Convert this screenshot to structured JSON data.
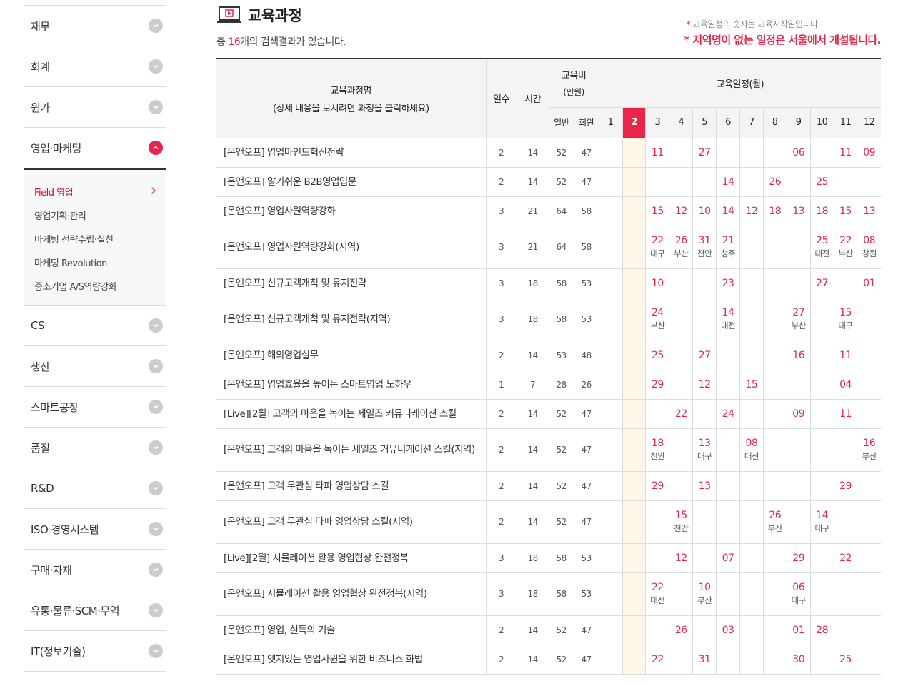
{
  "sidebar": {
    "items_before": [
      "재무",
      "회계",
      "원가"
    ],
    "open_item": "영업·마케팅",
    "submenu": [
      {
        "label": "Field 영업",
        "active": true
      },
      {
        "label": "영업기획·관리"
      },
      {
        "label": "마케팅 전략수립·실천"
      },
      {
        "label": "마케팅 Revolution"
      },
      {
        "label": "중소기업 A/S역량강화"
      }
    ],
    "items_after": [
      "CS",
      "생산",
      "스마트공장",
      "품질",
      "R&D",
      "ISO 경영시스템",
      "구매·자재",
      "유통·물류·SCM·무역",
      "IT(정보기술)"
    ]
  },
  "header": {
    "title": "교육과정",
    "icon": "laptop-play-icon",
    "count_prefix": "총 ",
    "count": "16",
    "count_suffix": "개의 검색결과가 있습니다.",
    "note1": "교육일정의 숫자는 교육시작일입니다.",
    "note2": "* 지역명이 없는 일정은 서울에서 개설됩니다.",
    "note_mark": "*"
  },
  "colors": {
    "accent": "#e8264a",
    "current_month_bg": "#fff8e8"
  },
  "table": {
    "col_name": "교육과정명",
    "col_name_sub": "(상세 내용을 보시려면 과정을 클릭하세요)",
    "col_days": "일수",
    "col_hours": "시간",
    "col_fee": "교육비",
    "col_fee_unit": "(만원)",
    "col_fee_general": "일반",
    "col_fee_member": "회원",
    "col_schedule": "교육일정(월)",
    "months": [
      "1",
      "2",
      "3",
      "4",
      "5",
      "6",
      "7",
      "8",
      "9",
      "10",
      "11",
      "12"
    ],
    "current_month": "2",
    "rows": [
      {
        "name": "[온앤오프] 영업마인드혁신전략",
        "days": "2",
        "hours": "14",
        "general": "52",
        "member": "47",
        "schedule": [
          "",
          "",
          "11",
          "",
          "27",
          "",
          "",
          "",
          "06",
          "",
          "11",
          "09"
        ]
      },
      {
        "name": "[온앤오프] 알기쉬운 B2B영업입문",
        "days": "2",
        "hours": "14",
        "general": "52",
        "member": "47",
        "schedule": [
          "",
          "",
          "",
          "",
          "",
          "14",
          "",
          "26",
          "",
          "25",
          "",
          ""
        ]
      },
      {
        "name": "[온앤오프] 영업사원역량강화",
        "days": "3",
        "hours": "21",
        "general": "64",
        "member": "58",
        "schedule": [
          "",
          "",
          "15",
          "12",
          "10",
          "14",
          "12",
          "18",
          "13",
          "18",
          "15",
          "13"
        ]
      },
      {
        "name": "[온앤오프] 영업사원역량강화(지역)",
        "days": "3",
        "hours": "21",
        "general": "64",
        "member": "58",
        "schedule": [
          "",
          "",
          "22",
          "26",
          "31",
          "21",
          "",
          "",
          "",
          "25",
          "22",
          "08"
        ],
        "regions": [
          "",
          "",
          "대구",
          "부산",
          "천안",
          "청주",
          "",
          "",
          "",
          "대전",
          "부산",
          "창원"
        ]
      },
      {
        "name": "[온앤오프] 신규고객개척 및 유지전략",
        "days": "3",
        "hours": "18",
        "general": "58",
        "member": "53",
        "schedule": [
          "",
          "",
          "10",
          "",
          "",
          "23",
          "",
          "",
          "",
          "27",
          "",
          "01"
        ]
      },
      {
        "name": "[온앤오프] 신규고객개척 및 유지전략(지역)",
        "days": "3",
        "hours": "18",
        "general": "58",
        "member": "53",
        "schedule": [
          "",
          "",
          "24",
          "",
          "",
          "14",
          "",
          "",
          "27",
          "",
          "15",
          ""
        ],
        "regions": [
          "",
          "",
          "부산",
          "",
          "",
          "대전",
          "",
          "",
          "부산",
          "",
          "대구",
          ""
        ]
      },
      {
        "name": "[온앤오프] 해외영업실무",
        "days": "2",
        "hours": "14",
        "general": "53",
        "member": "48",
        "schedule": [
          "",
          "",
          "25",
          "",
          "27",
          "",
          "",
          "",
          "16",
          "",
          "11",
          ""
        ]
      },
      {
        "name": "[온앤오프] 영업효율을 높이는 스마트영업 노하우",
        "days": "1",
        "hours": "7",
        "general": "28",
        "member": "26",
        "schedule": [
          "",
          "",
          "29",
          "",
          "12",
          "",
          "15",
          "",
          "",
          "",
          "04",
          ""
        ]
      },
      {
        "name": "[Live][2월] 고객의 마음을 녹이는 세일즈 커뮤니케이션 스킬",
        "days": "2",
        "hours": "14",
        "general": "52",
        "member": "47",
        "schedule": [
          "",
          "",
          "",
          "22",
          "",
          "24",
          "",
          "",
          "09",
          "",
          "11",
          ""
        ]
      },
      {
        "name": "[온앤오프] 고객의 마음을 녹이는 세일즈 커뮤니케이션 스킬(지역)",
        "days": "2",
        "hours": "14",
        "general": "52",
        "member": "47",
        "schedule": [
          "",
          "",
          "18",
          "",
          "13",
          "",
          "08",
          "",
          "",
          "",
          "",
          "16"
        ],
        "regions": [
          "",
          "",
          "천안",
          "",
          "대구",
          "",
          "대전",
          "",
          "",
          "",
          "",
          "부산"
        ]
      },
      {
        "name": "[온앤오프] 고객 무관심 타파 영업상담 스킬",
        "days": "2",
        "hours": "14",
        "general": "52",
        "member": "47",
        "schedule": [
          "",
          "",
          "29",
          "",
          "13",
          "",
          "",
          "",
          "",
          "",
          "29",
          ""
        ]
      },
      {
        "name": "[온앤오프] 고객 무관심 타파 영업상담 스킬(지역)",
        "days": "2",
        "hours": "14",
        "general": "52",
        "member": "47",
        "schedule": [
          "",
          "",
          "",
          "15",
          "",
          "",
          "",
          "26",
          "",
          "14",
          "",
          ""
        ],
        "regions": [
          "",
          "",
          "",
          "천안",
          "",
          "",
          "",
          "부산",
          "",
          "대구",
          "",
          ""
        ]
      },
      {
        "name": "[Live][2월] 시뮬레이션 활용 영업협상 완전정복",
        "days": "3",
        "hours": "18",
        "general": "58",
        "member": "53",
        "schedule": [
          "",
          "",
          "",
          "12",
          "",
          "07",
          "",
          "",
          "29",
          "",
          "22",
          ""
        ]
      },
      {
        "name": "[온앤오프] 시뮬레이션 활용 영업협상 완전정복(지역)",
        "days": "3",
        "hours": "18",
        "general": "58",
        "member": "53",
        "schedule": [
          "",
          "",
          "22",
          "",
          "10",
          "",
          "",
          "",
          "06",
          "",
          "",
          ""
        ],
        "regions": [
          "",
          "",
          "대전",
          "",
          "부산",
          "",
          "",
          "",
          "대구",
          "",
          "",
          ""
        ]
      },
      {
        "name": "[온앤오프] 영업, 설득의 기술",
        "days": "2",
        "hours": "14",
        "general": "52",
        "member": "47",
        "schedule": [
          "",
          "",
          "",
          "26",
          "",
          "03",
          "",
          "",
          "01",
          "28",
          "",
          ""
        ]
      },
      {
        "name": "[온앤오프] 엣지있는 영업사원을 위한 비즈니스 화법",
        "days": "2",
        "hours": "14",
        "general": "52",
        "member": "47",
        "schedule": [
          "",
          "",
          "22",
          "",
          "31",
          "",
          "",
          "",
          "30",
          "",
          "25",
          ""
        ]
      }
    ]
  }
}
